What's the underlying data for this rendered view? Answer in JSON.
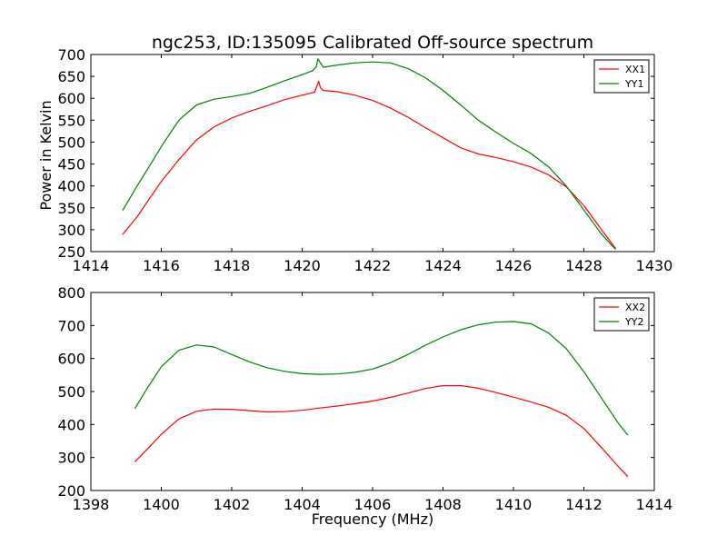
{
  "figure": {
    "title": "ngc253, ID:135095 Calibrated Off-source spectrum",
    "ylabel": "Power in Kelvin",
    "xlabel": "Frequency (MHz)"
  },
  "chart_data": [
    {
      "type": "line",
      "title": "ngc253, ID:135095 Calibrated Off-source spectrum",
      "xlabel": "",
      "ylabel": "Power in Kelvin",
      "xlim": [
        1414,
        1430
      ],
      "ylim": [
        250,
        700
      ],
      "xticks": [
        1414,
        1416,
        1418,
        1420,
        1422,
        1424,
        1426,
        1428,
        1430
      ],
      "yticks": [
        250,
        300,
        350,
        400,
        450,
        500,
        550,
        600,
        650,
        700
      ],
      "legend": "top-right",
      "grid": false,
      "series": [
        {
          "name": "XX1",
          "color": "#ff0000",
          "points": [
            [
              1414.9,
              289
            ],
            [
              1415.3,
              328
            ],
            [
              1415.7,
              375
            ],
            [
              1416.0,
              410
            ],
            [
              1416.5,
              460
            ],
            [
              1417.0,
              505
            ],
            [
              1417.5,
              535
            ],
            [
              1418.0,
              555
            ],
            [
              1418.5,
              570
            ],
            [
              1419.0,
              583
            ],
            [
              1419.5,
              597
            ],
            [
              1420.0,
              607
            ],
            [
              1420.35,
              614
            ],
            [
              1420.42,
              628
            ],
            [
              1420.47,
              639
            ],
            [
              1420.52,
              624
            ],
            [
              1420.6,
              618
            ],
            [
              1421.0,
              615
            ],
            [
              1421.5,
              607
            ],
            [
              1422.0,
              595
            ],
            [
              1422.5,
              578
            ],
            [
              1423.0,
              557
            ],
            [
              1423.5,
              533
            ],
            [
              1424.0,
              510
            ],
            [
              1424.5,
              487
            ],
            [
              1425.0,
              473
            ],
            [
              1425.5,
              465
            ],
            [
              1426.0,
              455
            ],
            [
              1426.5,
              443
            ],
            [
              1427.0,
              425
            ],
            [
              1427.5,
              398
            ],
            [
              1428.0,
              355
            ],
            [
              1428.5,
              300
            ],
            [
              1428.9,
              257
            ]
          ]
        },
        {
          "name": "YY1",
          "color": "#008000",
          "points": [
            [
              1414.9,
              344
            ],
            [
              1415.3,
              398
            ],
            [
              1415.7,
              450
            ],
            [
              1416.0,
              490
            ],
            [
              1416.5,
              550
            ],
            [
              1417.0,
              585
            ],
            [
              1417.5,
              598
            ],
            [
              1418.0,
              604
            ],
            [
              1418.5,
              611
            ],
            [
              1419.0,
              625
            ],
            [
              1419.5,
              640
            ],
            [
              1420.0,
              654
            ],
            [
              1420.3,
              663
            ],
            [
              1420.4,
              672
            ],
            [
              1420.45,
              690
            ],
            [
              1420.5,
              683
            ],
            [
              1420.6,
              671
            ],
            [
              1421.0,
              676
            ],
            [
              1421.5,
              681
            ],
            [
              1422.0,
              683
            ],
            [
              1422.5,
              681
            ],
            [
              1423.0,
              668
            ],
            [
              1423.5,
              647
            ],
            [
              1424.0,
              618
            ],
            [
              1424.5,
              585
            ],
            [
              1425.0,
              550
            ],
            [
              1425.5,
              523
            ],
            [
              1426.0,
              497
            ],
            [
              1426.5,
              474
            ],
            [
              1427.0,
              443
            ],
            [
              1427.5,
              400
            ],
            [
              1428.0,
              345
            ],
            [
              1428.5,
              290
            ],
            [
              1428.9,
              255
            ]
          ]
        }
      ]
    },
    {
      "type": "line",
      "title": "",
      "xlabel": "Frequency (MHz)",
      "ylabel": "",
      "xlim": [
        1398,
        1414
      ],
      "ylim": [
        200,
        800
      ],
      "xticks": [
        1398,
        1400,
        1402,
        1404,
        1406,
        1408,
        1410,
        1412,
        1414
      ],
      "yticks": [
        200,
        300,
        400,
        500,
        600,
        700,
        800
      ],
      "legend": "top-right",
      "grid": false,
      "series": [
        {
          "name": "XX2",
          "color": "#ff0000",
          "points": [
            [
              1399.25,
              287
            ],
            [
              1399.6,
              325
            ],
            [
              1400.0,
              370
            ],
            [
              1400.5,
              417
            ],
            [
              1401.0,
              440
            ],
            [
              1401.5,
              447
            ],
            [
              1402.0,
              446
            ],
            [
              1402.5,
              442
            ],
            [
              1403.0,
              438
            ],
            [
              1403.5,
              439
            ],
            [
              1404.0,
              443
            ],
            [
              1404.5,
              450
            ],
            [
              1405.0,
              456
            ],
            [
              1405.5,
              463
            ],
            [
              1406.0,
              471
            ],
            [
              1406.5,
              482
            ],
            [
              1407.0,
              495
            ],
            [
              1407.5,
              509
            ],
            [
              1408.0,
              518
            ],
            [
              1408.5,
              518
            ],
            [
              1409.0,
              510
            ],
            [
              1409.5,
              497
            ],
            [
              1410.0,
              483
            ],
            [
              1410.5,
              468
            ],
            [
              1411.0,
              452
            ],
            [
              1411.5,
              428
            ],
            [
              1412.0,
              388
            ],
            [
              1412.5,
              330
            ],
            [
              1413.0,
              270
            ],
            [
              1413.25,
              242
            ]
          ]
        },
        {
          "name": "YY2",
          "color": "#008000",
          "points": [
            [
              1399.25,
              448
            ],
            [
              1399.6,
              510
            ],
            [
              1400.0,
              575
            ],
            [
              1400.5,
              625
            ],
            [
              1401.0,
              641
            ],
            [
              1401.5,
              635
            ],
            [
              1402.0,
              612
            ],
            [
              1402.5,
              590
            ],
            [
              1403.0,
              572
            ],
            [
              1403.5,
              561
            ],
            [
              1404.0,
              554
            ],
            [
              1404.5,
              552
            ],
            [
              1405.0,
              553
            ],
            [
              1405.5,
              558
            ],
            [
              1406.0,
              568
            ],
            [
              1406.5,
              587
            ],
            [
              1407.0,
              612
            ],
            [
              1407.5,
              640
            ],
            [
              1408.0,
              665
            ],
            [
              1408.5,
              687
            ],
            [
              1409.0,
              702
            ],
            [
              1409.5,
              710
            ],
            [
              1410.0,
              712
            ],
            [
              1410.5,
              705
            ],
            [
              1411.0,
              677
            ],
            [
              1411.5,
              630
            ],
            [
              1412.0,
              560
            ],
            [
              1412.5,
              480
            ],
            [
              1413.0,
              400
            ],
            [
              1413.25,
              368
            ]
          ]
        }
      ]
    }
  ]
}
